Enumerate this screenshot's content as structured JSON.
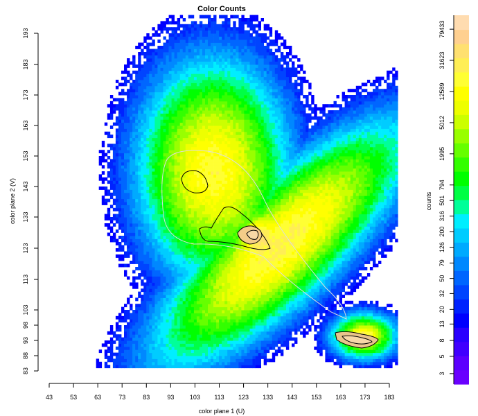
{
  "chart_data": {
    "type": "heatmap",
    "title": "Color Counts",
    "xlabel": "color plane 1 (U)",
    "ylabel": "color plane 2 (V)",
    "colorbar_label": "counts",
    "xlim": [
      43,
      186
    ],
    "ylim": [
      82,
      199
    ],
    "x_ticks": [
      "43",
      "53",
      "63",
      "73",
      "83",
      "93",
      "103",
      "113",
      "123",
      "133",
      "143",
      "153",
      "163",
      "173",
      "183"
    ],
    "y_ticks": [
      "83",
      "88",
      "93",
      "98",
      "103",
      "113",
      "123",
      "133",
      "143",
      "153",
      "163",
      "173",
      "183",
      "193"
    ],
    "y_tick_values": [
      83,
      88,
      93,
      98,
      103,
      113,
      123,
      133,
      143,
      153,
      163,
      173,
      183,
      193
    ],
    "colorbar_ticks": [
      "3",
      "5",
      "8",
      "13",
      "20",
      "32",
      "50",
      "79",
      "126",
      "200",
      "316",
      "501",
      "794",
      "1995",
      "5012",
      "12589",
      "31623",
      "79433"
    ],
    "colorbar_tick_values": [
      3,
      5,
      8,
      13,
      20,
      32,
      50,
      79,
      126,
      200,
      316,
      501,
      794,
      1995,
      5012,
      12589,
      31623,
      79433
    ],
    "colorbar_range": [
      2.2,
      120000
    ],
    "colorbar_colors": [
      "#6a00ff",
      "#5b00ff",
      "#4000ff",
      "#2a00ff",
      "#0000ff",
      "#0022ff",
      "#0044ff",
      "#0066ff",
      "#0088ff",
      "#00aaff",
      "#00ccff",
      "#00eeff",
      "#00ff99",
      "#00ff44",
      "#00ff00",
      "#33ff00",
      "#66ff00",
      "#99ff00",
      "#ccff00",
      "#eeff00",
      "#ffff00",
      "#ffff33",
      "#ffee55",
      "#ffe070",
      "#ffd090",
      "#ffdcb0"
    ],
    "density_components": [
      {
        "x": 162,
        "y": 137,
        "sx": 26,
        "sy": 19,
        "w": 1.0
      },
      {
        "x": 118,
        "y": 136,
        "sx": 12,
        "sy": 12,
        "w": 1.0
      },
      {
        "x": 104,
        "y": 146,
        "sx": 6,
        "sy": 5,
        "w": 0.6
      },
      {
        "x": 128,
        "y": 127,
        "sx": 3,
        "sy": 3,
        "w": 1.0
      },
      {
        "x": 172,
        "y": 94,
        "sx": 5,
        "sy": 2.5,
        "w": 1.0
      },
      {
        "x": 148,
        "y": 112,
        "sx": 7,
        "sy": 5,
        "w": 0.5
      }
    ]
  }
}
